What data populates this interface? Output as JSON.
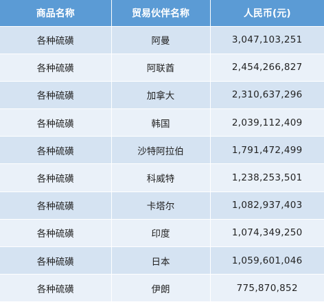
{
  "table": {
    "headers": [
      "商品名称",
      "贸易伙伴名称",
      "人民币(元)"
    ],
    "rows": [
      [
        "各种硫磺",
        "阿曼",
        "3,047,103,251"
      ],
      [
        "各种硫磺",
        "阿联酋",
        "2,454,266,827"
      ],
      [
        "各种硫磺",
        "加拿大",
        "2,310,637,296"
      ],
      [
        "各种硫磺",
        "韩国",
        "2,039,112,409"
      ],
      [
        "各种硫磺",
        "沙特阿拉伯",
        "1,791,472,499"
      ],
      [
        "各种硫磺",
        "科威特",
        "1,238,253,501"
      ],
      [
        "各种硫磺",
        "卡塔尔",
        "1,082,937,403"
      ],
      [
        "各种硫磺",
        "印度",
        "1,074,349,250"
      ],
      [
        "各种硫磺",
        "日本",
        "1,059,601,046"
      ],
      [
        "各种硫磺",
        "伊朗",
        "775,870,852"
      ]
    ]
  },
  "colors": {
    "header_bg": "#5b9bd5",
    "header_text": "#ffffff",
    "row_odd_bg": "#d5e3f2",
    "row_even_bg": "#eaf1f9"
  }
}
